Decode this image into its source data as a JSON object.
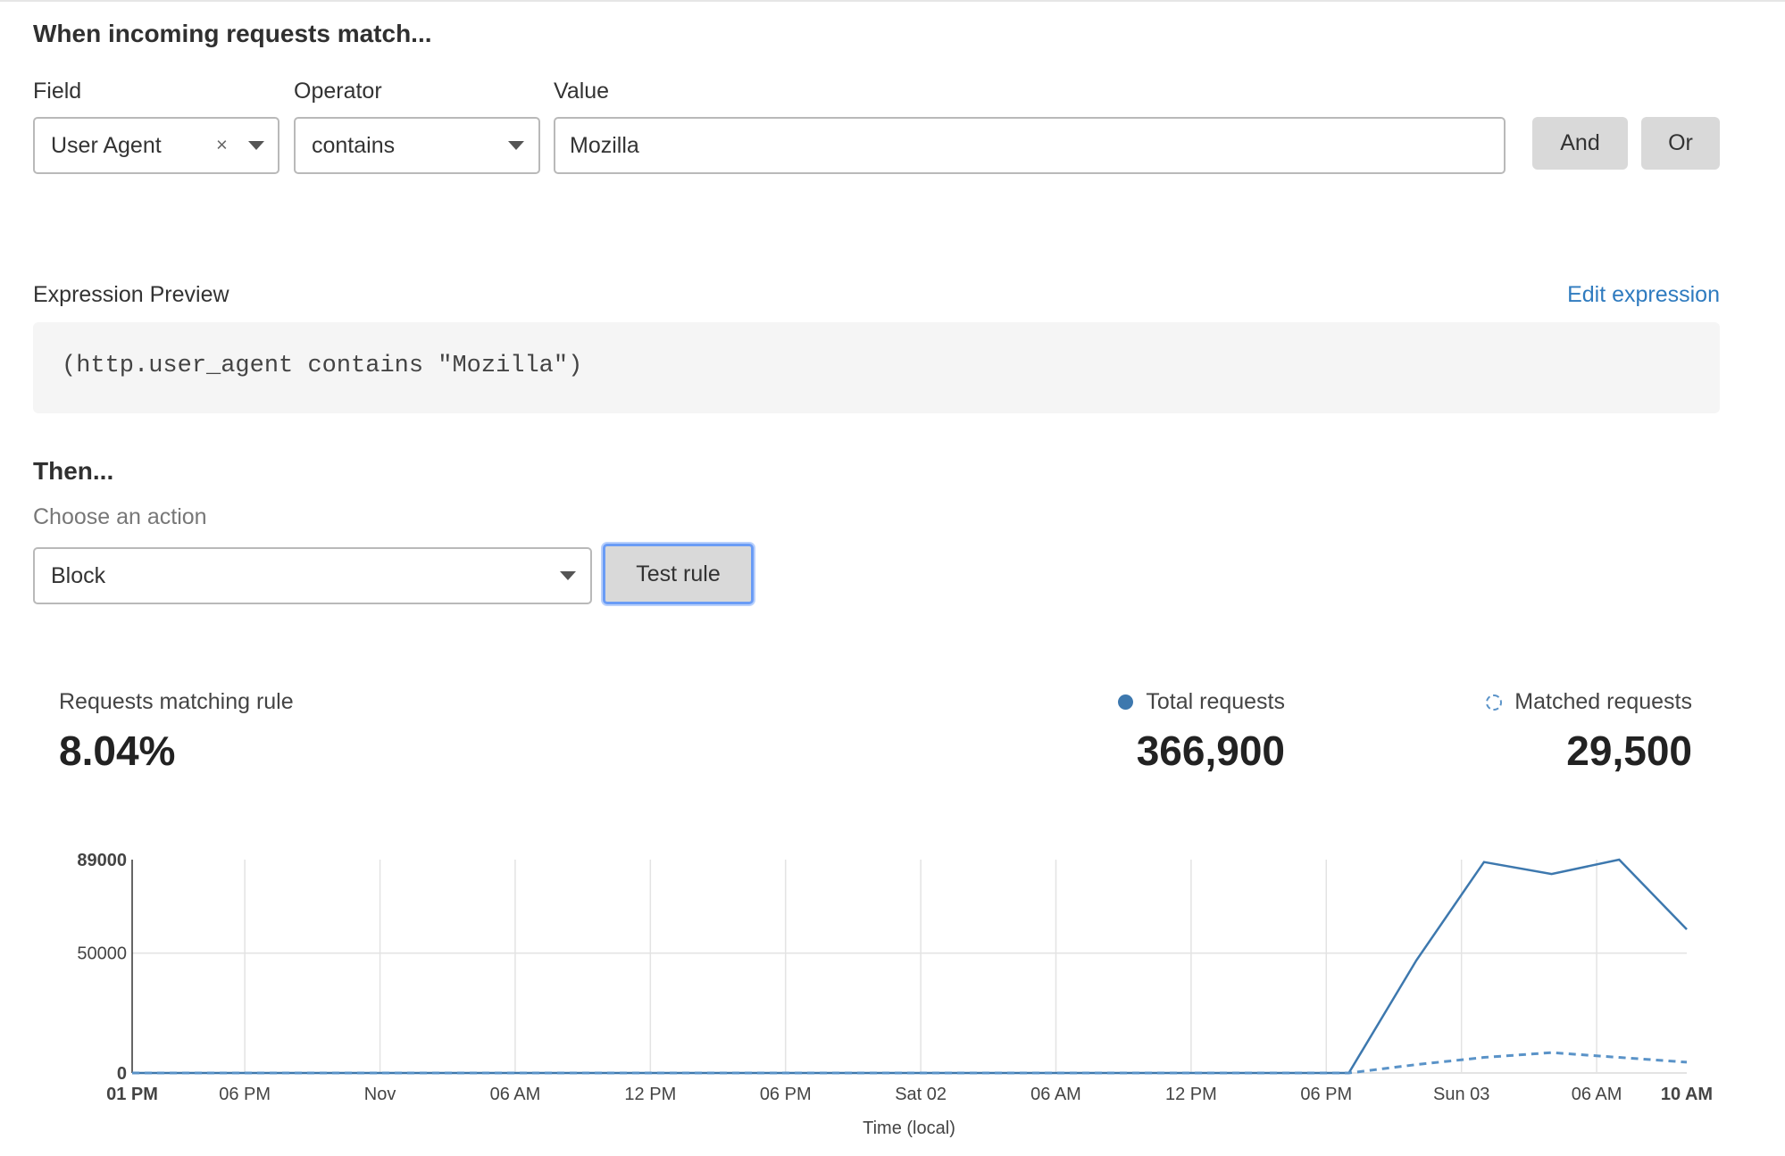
{
  "match_section": {
    "heading": "When incoming requests match...",
    "field_label": "Field",
    "operator_label": "Operator",
    "value_label": "Value",
    "field_value": "User Agent",
    "clear_glyph": "×",
    "operator_value": "contains",
    "value_input": "Mozilla",
    "and_label": "And",
    "or_label": "Or"
  },
  "expression": {
    "label": "Expression Preview",
    "edit_link": "Edit expression",
    "code": "(http.user_agent contains \"Mozilla\")"
  },
  "then_section": {
    "heading": "Then...",
    "choose_label": "Choose an action",
    "action_value": "Block",
    "test_rule_label": "Test rule"
  },
  "stats": {
    "matching_label": "Requests matching rule",
    "matching_value": "8.04%",
    "total_label": "Total requests",
    "total_value": "366,900",
    "matched_label": "Matched requests",
    "matched_value": "29,500"
  },
  "colors": {
    "accent": "#3d78ae",
    "link": "#2f7bbf",
    "focus": "#6a9cf5"
  },
  "chart_data": {
    "type": "line",
    "xlabel": "Time (local)",
    "ylabel": "",
    "ylim": [
      0,
      89000
    ],
    "yticks": [
      "0",
      "50000",
      "89000"
    ],
    "xticks": [
      "01 PM",
      "06 PM",
      "Nov",
      "06 AM",
      "12 PM",
      "06 PM",
      "Sat 02",
      "06 AM",
      "12 PM",
      "06 PM",
      "Sun 03",
      "06 AM",
      "10 AM"
    ],
    "grid": true,
    "x": [
      "Oct 31 01 PM",
      "Oct 31 04 PM",
      "Oct 31 07 PM",
      "Oct 31 10 PM",
      "Nov 01 01 AM",
      "Nov 01 04 AM",
      "Nov 01 07 AM",
      "Nov 01 10 AM",
      "Nov 01 01 PM",
      "Nov 01 04 PM",
      "Nov 01 07 PM",
      "Nov 01 10 PM",
      "Nov 02 01 AM",
      "Nov 02 04 AM",
      "Nov 02 07 AM",
      "Nov 02 10 AM",
      "Nov 02 01 PM",
      "Nov 02 04 PM",
      "Nov 02 07 PM",
      "Nov 02 10 PM",
      "Nov 03 01 AM",
      "Nov 03 04 AM",
      "Nov 03 07 AM",
      "Nov 03 10 AM"
    ],
    "series": [
      {
        "name": "Total requests",
        "style": "solid",
        "values": [
          0,
          0,
          0,
          0,
          0,
          0,
          0,
          0,
          0,
          0,
          0,
          0,
          0,
          0,
          0,
          0,
          0,
          0,
          0,
          47000,
          88000,
          83000,
          89000,
          59900
        ]
      },
      {
        "name": "Matched requests",
        "style": "dashed",
        "values": [
          0,
          0,
          0,
          0,
          0,
          0,
          0,
          0,
          0,
          0,
          0,
          0,
          0,
          0,
          0,
          0,
          0,
          0,
          0,
          3500,
          6500,
          8500,
          6500,
          4500
        ]
      }
    ]
  }
}
